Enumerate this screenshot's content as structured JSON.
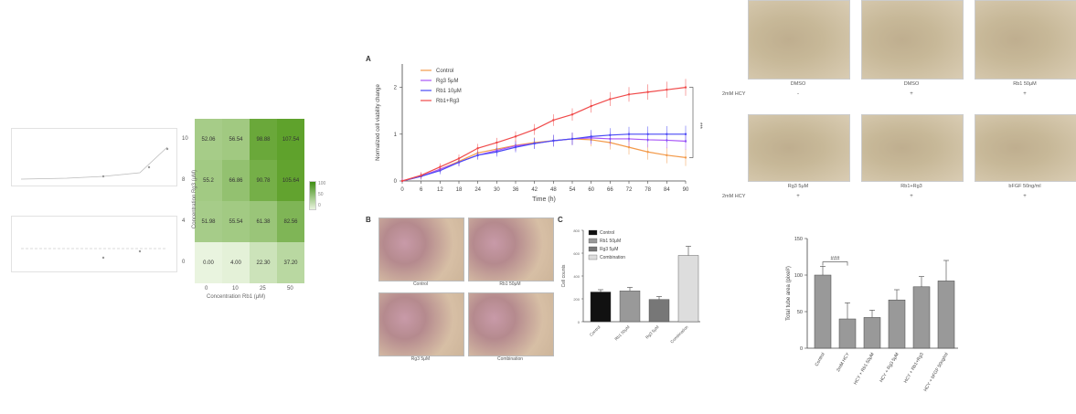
{
  "heatmap": {
    "rows": [
      "10",
      "8",
      "4",
      "0"
    ],
    "cols": [
      "0",
      "10",
      "25",
      "50"
    ],
    "values": [
      [
        "52.06",
        "56.54",
        "98.88",
        "107.54"
      ],
      [
        "55.2",
        "66.86",
        "90.78",
        "105.64"
      ],
      [
        "51.98",
        "55.54",
        "61.38",
        "82.56"
      ],
      [
        "0.00",
        "4.00",
        "22.30",
        "37.20"
      ]
    ],
    "xlabel": "Concentration Rb1 (μM)",
    "ylabel": "Concentration Rg3 (μM)",
    "legend": [
      "100",
      "50",
      "0"
    ]
  },
  "line_chart": {
    "panel": "A",
    "ylabel": "Normalized cell viability change",
    "xlabel": "Time (h)",
    "legend": [
      "Control",
      "Rg3 5μM",
      "Rb1 10μM",
      "Rb1+Rg3"
    ],
    "colors": [
      "#f39a4a",
      "#a855f7",
      "#4a4af5",
      "#f04a4a"
    ],
    "annotation": "***"
  },
  "chart_data": [
    {
      "type": "line",
      "title": "",
      "xlabel": "Time (h)",
      "ylabel": "Normalized cell viability change",
      "x": [
        0,
        6,
        12,
        18,
        24,
        30,
        36,
        42,
        48,
        54,
        60,
        66,
        72,
        78,
        84,
        90
      ],
      "ylim": [
        0,
        2.5
      ],
      "yticks": [
        0,
        1,
        2
      ],
      "series": [
        {
          "name": "Control",
          "values": [
            0.0,
            0.1,
            0.25,
            0.42,
            0.6,
            0.68,
            0.76,
            0.82,
            0.86,
            0.9,
            0.88,
            0.82,
            0.72,
            0.62,
            0.55,
            0.5
          ]
        },
        {
          "name": "Rg3 5μM",
          "values": [
            0.0,
            0.1,
            0.25,
            0.4,
            0.55,
            0.65,
            0.75,
            0.8,
            0.86,
            0.9,
            0.92,
            0.9,
            0.9,
            0.88,
            0.87,
            0.85
          ]
        },
        {
          "name": "Rb1 10μM",
          "values": [
            0.0,
            0.1,
            0.22,
            0.4,
            0.55,
            0.62,
            0.72,
            0.8,
            0.86,
            0.9,
            0.95,
            0.98,
            1.0,
            1.0,
            1.0,
            1.0
          ]
        },
        {
          "name": "Rb1+Rg3",
          "values": [
            0.0,
            0.12,
            0.3,
            0.48,
            0.7,
            0.82,
            0.95,
            1.1,
            1.3,
            1.42,
            1.6,
            1.75,
            1.85,
            1.9,
            1.95,
            2.0
          ]
        }
      ]
    },
    {
      "type": "bar",
      "title": "",
      "xlabel": "",
      "ylabel": "Cell counts",
      "categories": [
        "Control",
        "Rb1 50μM",
        "Rg3 5μM",
        "Combination"
      ],
      "values": [
        260,
        270,
        195,
        580
      ],
      "errors": [
        20,
        30,
        25,
        80
      ],
      "ylim": [
        0,
        800
      ],
      "legend": [
        "Control",
        "Rb1 50μM",
        "Rg3 5μM",
        "Combination"
      ]
    },
    {
      "type": "bar",
      "title": "",
      "xlabel": "",
      "ylabel": "Total tube area (pixel²)",
      "categories": [
        "Control",
        "2mM HCY",
        "HCY + Rb1 50μM",
        "HCY + Rg3 5μM",
        "HCY + Rb1+Rg3",
        "HCY + bFGF 50ng/ml"
      ],
      "values": [
        100,
        40,
        42,
        66,
        84,
        92
      ],
      "errors": [
        12,
        22,
        10,
        14,
        14,
        28
      ],
      "ylim": [
        0,
        150
      ],
      "yticks": [
        0,
        50,
        100,
        150
      ],
      "annotation": "###"
    }
  ],
  "panel_b": {
    "label": "B",
    "captions": [
      "Control",
      "Rb1 50μM",
      "Rg3 5μM",
      "Combination"
    ]
  },
  "panel_c": {
    "label": "C"
  },
  "tube_panel": {
    "row1_captions": [
      "DMSO",
      "DMSO",
      "Rb1 50μM"
    ],
    "row2_captions": [
      "Rg3 5μM",
      "Rb1+Rg3",
      "bFGF 50ng/ml"
    ],
    "hcy_label": "2mM HCY",
    "row1_hcy": [
      "-",
      "+",
      "+"
    ],
    "row2_hcy": [
      "+",
      "+",
      "+"
    ]
  },
  "colors": {
    "green": "#6aaa2a",
    "bar_grey": "#999999",
    "red": "#f04a4a"
  }
}
